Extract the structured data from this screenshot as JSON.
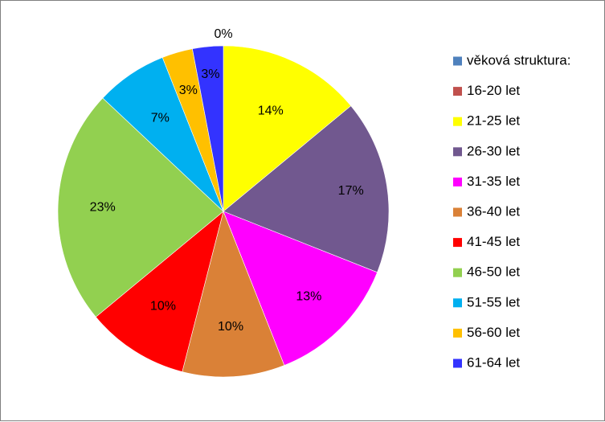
{
  "chart_data": {
    "type": "pie",
    "title": "",
    "categories": [
      "věková struktura:",
      "16-20 let",
      "21-25 let",
      "26-30 let",
      "31-35 let",
      "36-40 let",
      "41-45 let",
      "46-50 let",
      "51-55 let",
      "56-60 let",
      "61-64 let"
    ],
    "values": [
      0,
      0,
      14,
      17,
      13,
      10,
      10,
      23,
      7,
      3,
      3
    ],
    "labels": [
      "",
      "0%",
      "14%",
      "17%",
      "13%",
      "10%",
      "10%",
      "23%",
      "7%",
      "3%",
      "3%"
    ],
    "colors": [
      "#4F81BD",
      "#C0504D",
      "#FFFF00",
      "#71588F",
      "#FF00FF",
      "#DA8137",
      "#FF0000",
      "#92D050",
      "#00B0F0",
      "#FFC000",
      "#3333FF"
    ],
    "legend_position": "right"
  }
}
